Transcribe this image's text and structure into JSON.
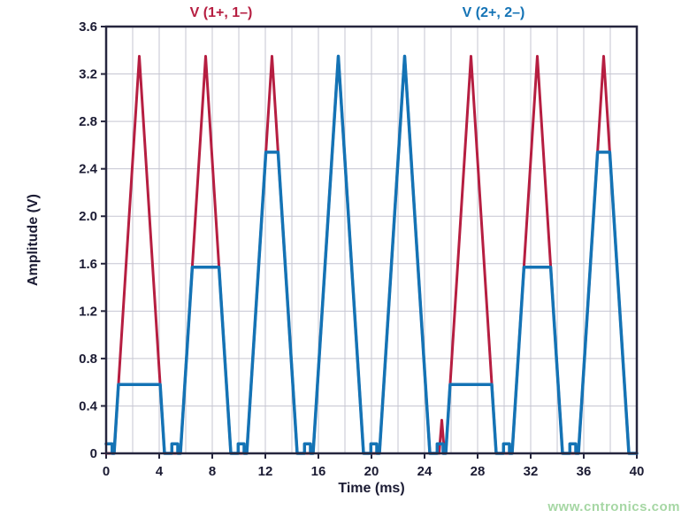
{
  "page": {
    "watermark": "www.cntronics.com"
  },
  "chart_data": {
    "type": "line",
    "title": "",
    "xlabel": "Time (ms)",
    "ylabel": "Amplitude (V)",
    "xlim": [
      0,
      40
    ],
    "ylim": [
      0,
      3.6
    ],
    "xticks": [
      0,
      4,
      8,
      12,
      16,
      20,
      24,
      28,
      32,
      36,
      40
    ],
    "xtick_labels": [
      "0",
      "4",
      "8",
      "12",
      "16",
      "20",
      "24",
      "28",
      "32",
      "36",
      "40"
    ],
    "yticks": [
      0,
      0.4,
      0.8,
      1.2,
      1.6,
      2.0,
      2.4,
      2.8,
      3.2,
      3.6
    ],
    "ytick_labels": [
      "0",
      "0.4",
      "0.8",
      "1.2",
      "1.6",
      "2.0",
      "2.4",
      "2.8",
      "3.2",
      "3.6"
    ],
    "grid": {
      "x": [
        2,
        4,
        6,
        8,
        10,
        12,
        14,
        16,
        18,
        20,
        22,
        24,
        26,
        28,
        30,
        32,
        34,
        36,
        38
      ],
      "y": [
        0.4,
        0.8,
        1.2,
        1.6,
        2.0,
        2.4,
        2.8,
        3.2
      ]
    },
    "legend_position": "top",
    "colors": {
      "frame": "#26263e",
      "grid": "#c6c6d2",
      "tick_text": "#1b1b33",
      "axis_label": "#1b1b33",
      "watermark": "#a6d7a4"
    },
    "series": [
      {
        "name": "V (1+, 1–)",
        "color": "#b61e41",
        "width": 3,
        "points": [
          [
            0,
            0
          ],
          [
            0.6,
            0
          ],
          [
            2.5,
            3.35
          ],
          [
            4.4,
            0
          ],
          [
            5.6,
            0
          ],
          [
            7.5,
            3.35
          ],
          [
            9.4,
            0
          ],
          [
            10.6,
            0
          ],
          [
            12.5,
            3.35
          ],
          [
            14.4,
            0
          ],
          [
            15.6,
            0
          ],
          [
            17.5,
            3.35
          ],
          [
            19.4,
            0
          ],
          [
            20.6,
            0
          ],
          [
            22.5,
            3.35
          ],
          [
            24.4,
            0
          ],
          [
            25.1,
            0
          ],
          [
            25.3,
            0.28
          ],
          [
            25.5,
            0
          ],
          [
            25.6,
            0
          ],
          [
            27.5,
            3.35
          ],
          [
            29.4,
            0
          ],
          [
            30.6,
            0
          ],
          [
            32.5,
            3.35
          ],
          [
            34.4,
            0
          ],
          [
            35.6,
            0
          ],
          [
            37.5,
            3.35
          ],
          [
            39.4,
            0
          ],
          [
            40,
            0
          ]
        ]
      },
      {
        "name": "V (2+, 2–)",
        "color": "#1473b5",
        "width": 3.5,
        "points": [
          [
            0,
            0.08
          ],
          [
            0.45,
            0.08
          ],
          [
            0.45,
            0
          ],
          [
            0.6,
            0
          ],
          [
            0.93,
            0.58
          ],
          [
            4.07,
            0.58
          ],
          [
            4.4,
            0
          ],
          [
            4.95,
            0
          ],
          [
            4.95,
            0.08
          ],
          [
            5.4,
            0.08
          ],
          [
            5.4,
            0
          ],
          [
            5.6,
            0
          ],
          [
            6.49,
            1.57
          ],
          [
            8.51,
            1.57
          ],
          [
            9.4,
            0
          ],
          [
            9.95,
            0
          ],
          [
            9.95,
            0.08
          ],
          [
            10.4,
            0.08
          ],
          [
            10.4,
            0
          ],
          [
            10.6,
            0
          ],
          [
            12.04,
            2.54
          ],
          [
            12.96,
            2.54
          ],
          [
            14.4,
            0
          ],
          [
            14.95,
            0
          ],
          [
            14.95,
            0.08
          ],
          [
            15.4,
            0.08
          ],
          [
            15.4,
            0
          ],
          [
            15.6,
            0
          ],
          [
            17.5,
            3.35
          ],
          [
            19.4,
            0
          ],
          [
            19.95,
            0
          ],
          [
            19.95,
            0.08
          ],
          [
            20.4,
            0.08
          ],
          [
            20.4,
            0
          ],
          [
            20.6,
            0
          ],
          [
            22.5,
            3.35
          ],
          [
            24.4,
            0
          ],
          [
            24.95,
            0
          ],
          [
            24.95,
            0.08
          ],
          [
            25.4,
            0.08
          ],
          [
            25.4,
            0
          ],
          [
            25.6,
            0
          ],
          [
            25.93,
            0.58
          ],
          [
            29.07,
            0.58
          ],
          [
            29.4,
            0
          ],
          [
            29.95,
            0
          ],
          [
            29.95,
            0.08
          ],
          [
            30.4,
            0.08
          ],
          [
            30.4,
            0
          ],
          [
            30.6,
            0
          ],
          [
            31.49,
            1.57
          ],
          [
            33.51,
            1.57
          ],
          [
            34.4,
            0
          ],
          [
            34.95,
            0
          ],
          [
            34.95,
            0.08
          ],
          [
            35.4,
            0.08
          ],
          [
            35.4,
            0
          ],
          [
            35.6,
            0
          ],
          [
            37.04,
            2.54
          ],
          [
            37.96,
            2.54
          ],
          [
            39.4,
            0
          ],
          [
            40,
            0
          ]
        ]
      }
    ]
  }
}
